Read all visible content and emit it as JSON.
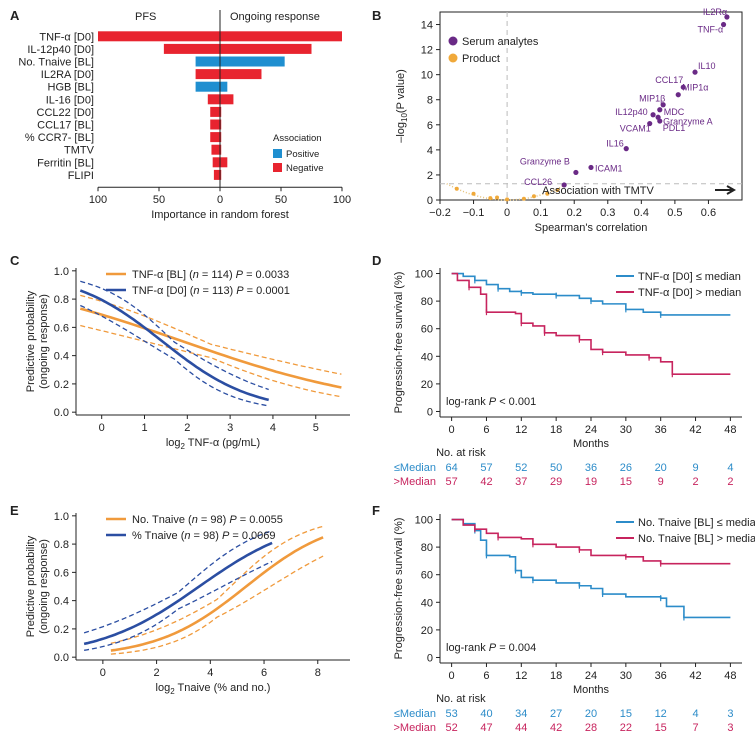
{
  "colors": {
    "red": "#e8242f",
    "blue": "#1f8fd0",
    "purple": "#6a2a86",
    "orange": "#f0a93a",
    "orangeLine": "#f09a3c",
    "navy": "#2b4ea2",
    "magenta": "#c7245e",
    "teal": "#2c8cc9",
    "grey": "#bbbbbb"
  },
  "chart_data": [
    {
      "panel": "A",
      "type": "bar",
      "title_left": "PFS",
      "title_right": "Ongoing response",
      "xlabel": "Importance in random forest",
      "xticks": [
        "100",
        "50",
        "0",
        "50",
        "100"
      ],
      "xlim": [
        -100,
        100
      ],
      "categories": [
        "TNF-α [D0]",
        "IL-12p40 [D0]",
        "No. Tnaive [BL]",
        "IL2RA [D0]",
        "HGB [BL]",
        "IL-16 [D0]",
        "CCL22 [D0]",
        "CCL17 [BL]",
        "% CCR7- [BL]",
        "TMTV",
        "Ferritin [BL]",
        "FLIPI"
      ],
      "pfs": [
        100,
        46,
        20,
        20,
        20,
        10,
        8,
        8,
        8,
        7,
        6,
        5
      ],
      "response": [
        100,
        75,
        53,
        34,
        6,
        11,
        1,
        1,
        1,
        1,
        6,
        1
      ],
      "association": [
        "Negative",
        "Negative",
        "Positive",
        "Negative",
        "Positive",
        "Negative",
        "Negative",
        "Negative",
        "Negative",
        "Negative",
        "Negative",
        "Negative"
      ],
      "legend_title": "Association",
      "legend": [
        "Positive",
        "Negative"
      ]
    },
    {
      "panel": "B",
      "type": "scatter",
      "xlabel": "Spearman's correlation",
      "ylabel_main": "–log",
      "ylabel_sub": "10",
      "ylabel_rest": "(P value)",
      "xlim": [
        -0.2,
        0.7
      ],
      "ylim": [
        0,
        15
      ],
      "xticks": [
        "−0.2",
        "−0.1",
        "0",
        "0.1",
        "0.2",
        "0.3",
        "0.4",
        "0.5",
        "0.6"
      ],
      "yticks": [
        "0",
        "2",
        "4",
        "6",
        "8",
        "10",
        "12",
        "14"
      ],
      "legend": [
        "Serum analytes",
        "Product"
      ],
      "annotation": "Association with TMTV",
      "threshold": 1.3,
      "labeled_points": [
        {
          "name": "IL2Rα",
          "x": 0.655,
          "y": 14.6
        },
        {
          "name": "TNF-α",
          "x": 0.645,
          "y": 14.0
        },
        {
          "name": "IL10",
          "x": 0.56,
          "y": 10.2
        },
        {
          "name": "CCL17",
          "x": 0.525,
          "y": 9.0
        },
        {
          "name": "MIP1α",
          "x": 0.51,
          "y": 8.4
        },
        {
          "name": "MIP1β",
          "x": 0.465,
          "y": 7.6
        },
        {
          "name": "MDC",
          "x": 0.455,
          "y": 7.2
        },
        {
          "name": "IL12p40",
          "x": 0.435,
          "y": 6.8
        },
        {
          "name": "Granzyme A",
          "x": 0.45,
          "y": 6.6
        },
        {
          "name": "VCAM1",
          "x": 0.425,
          "y": 6.1
        },
        {
          "name": "PDL1",
          "x": 0.455,
          "y": 6.3
        },
        {
          "name": "IL16",
          "x": 0.355,
          "y": 4.1
        },
        {
          "name": "ICAM1",
          "x": 0.25,
          "y": 2.6
        },
        {
          "name": "Granzyme B",
          "x": 0.205,
          "y": 2.2
        },
        {
          "name": "CCL26",
          "x": 0.17,
          "y": 1.2
        }
      ],
      "product_points": [
        {
          "x": -0.03,
          "y": 0.2
        },
        {
          "x": 0.05,
          "y": 0.1
        },
        {
          "x": -0.1,
          "y": 0.5
        },
        {
          "x": 0.12,
          "y": 0.5
        },
        {
          "x": 0.0,
          "y": 0.05
        },
        {
          "x": -0.05,
          "y": 0.15
        },
        {
          "x": 0.15,
          "y": 0.8
        },
        {
          "x": -0.15,
          "y": 0.9
        },
        {
          "x": 0.08,
          "y": 0.3
        }
      ]
    },
    {
      "panel": "C",
      "type": "line",
      "xlabel_pre": "log",
      "xlabel_sub": "2",
      "xlabel_post": " TNF-α (pg/mL)",
      "ylabel1": "Predictive probability",
      "ylabel2": "(ongoing response)",
      "xlim": [
        -0.6,
        5.8
      ],
      "ylim": [
        -0.02,
        1.02
      ],
      "xticks": [
        "0",
        "1",
        "2",
        "3",
        "4",
        "5"
      ],
      "yticks": [
        "0.0",
        "0.2",
        "0.4",
        "0.6",
        "0.8",
        "1.0"
      ],
      "series": [
        {
          "name": "TNF-α [BL]",
          "n": "114",
          "p": "0.0033",
          "color": "orange",
          "x0": -0.5,
          "x1": 5.6,
          "b0": 0.8,
          "b1": -0.42,
          "ci": 0.55
        },
        {
          "name": "TNF-α [D0]",
          "n": "113",
          "p": "0.0001",
          "color": "navy",
          "x0": -0.5,
          "x1": 3.9,
          "b0": 1.35,
          "b1": -0.95,
          "ci": 0.7
        }
      ]
    },
    {
      "panel": "D",
      "type": "line",
      "xlabel": "Months",
      "ylabel": "Progression-free survival (%)",
      "xticks": [
        "0",
        "6",
        "12",
        "18",
        "24",
        "30",
        "36",
        "42",
        "48"
      ],
      "yticks": [
        "0",
        "20",
        "40",
        "60",
        "80",
        "100"
      ],
      "legend": [
        "TNF-α [D0] ≤ median",
        "TNF-α [D0] > median"
      ],
      "stat": "log-rank P < 0.001",
      "risk_title": "No. at risk",
      "risk_labels": [
        "≤Median",
        ">Median"
      ],
      "risk_low": [
        "64",
        "57",
        "52",
        "50",
        "36",
        "26",
        "20",
        "9",
        "4"
      ],
      "risk_high": [
        "57",
        "42",
        "37",
        "29",
        "19",
        "15",
        "9",
        "2",
        "2"
      ],
      "curve_low": [
        [
          0,
          100
        ],
        [
          2,
          98
        ],
        [
          4,
          95
        ],
        [
          6,
          92
        ],
        [
          8,
          89
        ],
        [
          10,
          87
        ],
        [
          12,
          86
        ],
        [
          14,
          85
        ],
        [
          18,
          84
        ],
        [
          22,
          82
        ],
        [
          24,
          80
        ],
        [
          26,
          78
        ],
        [
          30,
          74
        ],
        [
          33,
          72
        ],
        [
          36,
          70
        ],
        [
          48,
          70
        ]
      ],
      "curve_high": [
        [
          0,
          100
        ],
        [
          1,
          95
        ],
        [
          3,
          90
        ],
        [
          5,
          85
        ],
        [
          6,
          72
        ],
        [
          11,
          71
        ],
        [
          12,
          64
        ],
        [
          14,
          62
        ],
        [
          16,
          57
        ],
        [
          18,
          55
        ],
        [
          22,
          52
        ],
        [
          24,
          45
        ],
        [
          26,
          43
        ],
        [
          30,
          41
        ],
        [
          34,
          39
        ],
        [
          36,
          36
        ],
        [
          38,
          27
        ],
        [
          48,
          27
        ]
      ]
    },
    {
      "panel": "E",
      "type": "line",
      "xlabel_pre": "log",
      "xlabel_sub": "2",
      "xlabel_post": " Tnaive (% and no.)",
      "ylabel1": "Predictive probability",
      "ylabel2": "(ongoing response)",
      "xlim": [
        -1,
        9.2
      ],
      "ylim": [
        -0.02,
        1.02
      ],
      "xticks": [
        "0",
        "2",
        "4",
        "6",
        "8"
      ],
      "yticks": [
        "0.0",
        "0.2",
        "0.4",
        "0.6",
        "0.8",
        "1.0"
      ],
      "series": [
        {
          "name": "No. Tnaive",
          "n": "98",
          "p": "0.0055",
          "color": "orange",
          "x0": 0.3,
          "x1": 8.2,
          "b0": -3.2,
          "b1": 0.6,
          "ci": 0.8
        },
        {
          "name": "% Tnaive",
          "n": "98",
          "p": "0.0069",
          "color": "navy",
          "x0": -0.7,
          "x1": 6.3,
          "b0": -1.9,
          "b1": 0.53,
          "ci": 0.7
        }
      ]
    },
    {
      "panel": "F",
      "type": "line",
      "xlabel": "Months",
      "ylabel": "Progression-free survival (%)",
      "xticks": [
        "0",
        "6",
        "12",
        "18",
        "24",
        "30",
        "36",
        "42",
        "48"
      ],
      "yticks": [
        "0",
        "20",
        "40",
        "60",
        "80",
        "100"
      ],
      "legend": [
        "No. Tnaive [BL] ≤ median",
        "No. Tnaive [BL] > median"
      ],
      "stat": "log-rank P = 0.004",
      "risk_title": "No. at risk",
      "risk_labels": [
        "≤Median",
        ">Median"
      ],
      "risk_low": [
        "53",
        "40",
        "34",
        "27",
        "20",
        "15",
        "12",
        "4",
        "3"
      ],
      "risk_high": [
        "52",
        "47",
        "44",
        "42",
        "28",
        "22",
        "15",
        "7",
        "3"
      ],
      "curve_low": [
        [
          0,
          100
        ],
        [
          2,
          97
        ],
        [
          4,
          92
        ],
        [
          5,
          85
        ],
        [
          6,
          74
        ],
        [
          10,
          73
        ],
        [
          11,
          63
        ],
        [
          12,
          58
        ],
        [
          14,
          56
        ],
        [
          18,
          54
        ],
        [
          22,
          52
        ],
        [
          24,
          50
        ],
        [
          26,
          46
        ],
        [
          30,
          44
        ],
        [
          36,
          43
        ],
        [
          37,
          37
        ],
        [
          40,
          29
        ],
        [
          48,
          29
        ]
      ],
      "curve_high": [
        [
          0,
          100
        ],
        [
          2,
          96
        ],
        [
          4,
          93
        ],
        [
          6,
          90
        ],
        [
          8,
          87
        ],
        [
          12,
          86
        ],
        [
          14,
          82
        ],
        [
          18,
          80
        ],
        [
          22,
          78
        ],
        [
          24,
          74
        ],
        [
          30,
          73
        ],
        [
          33,
          70
        ],
        [
          36,
          68
        ],
        [
          48,
          68
        ]
      ]
    }
  ],
  "panel_labels": [
    "A",
    "B",
    "C",
    "D",
    "E",
    "F"
  ]
}
